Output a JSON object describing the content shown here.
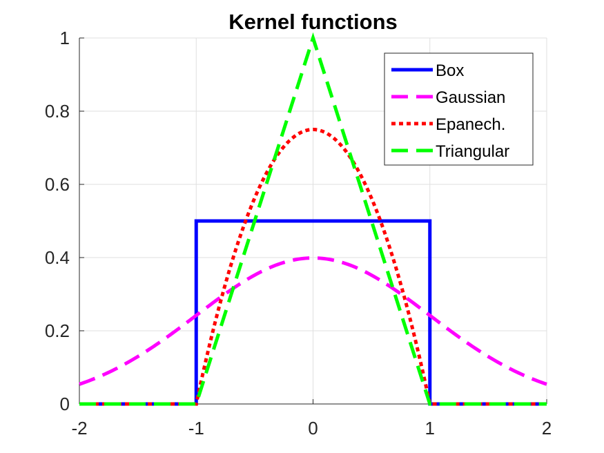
{
  "chart_data": {
    "type": "line",
    "title": "Kernel functions",
    "xlabel": "",
    "ylabel": "",
    "xlim": [
      -2,
      2
    ],
    "ylim": [
      0,
      1
    ],
    "xticks": [
      "-2",
      "-1",
      "0",
      "1",
      "2"
    ],
    "yticks": [
      "0",
      "0.2",
      "0.4",
      "0.6",
      "0.8",
      "1"
    ],
    "grid": true,
    "legend_position": "top-right",
    "x": [
      -2,
      -1.75,
      -1.5,
      -1.25,
      -1,
      -0.75,
      -0.5,
      -0.25,
      0,
      0.25,
      0.5,
      0.75,
      1,
      1.25,
      1.5,
      1.75,
      2
    ],
    "series": [
      {
        "name": "Box",
        "color": "#0000ff",
        "dash": "solid",
        "x": [
          -2,
          -1,
          -1,
          1,
          1,
          2
        ],
        "values": [
          0,
          0,
          0.5,
          0.5,
          0,
          0
        ]
      },
      {
        "name": "Gaussian",
        "color": "#ff00ff",
        "dash": "dashed",
        "x": [
          -2,
          -1.75,
          -1.5,
          -1.25,
          -1,
          -0.75,
          -0.5,
          -0.25,
          0,
          0.25,
          0.5,
          0.75,
          1,
          1.25,
          1.5,
          1.75,
          2
        ],
        "values": [
          0.054,
          0.086,
          0.13,
          0.183,
          0.242,
          0.301,
          0.352,
          0.387,
          0.399,
          0.387,
          0.352,
          0.301,
          0.242,
          0.183,
          0.13,
          0.086,
          0.054
        ]
      },
      {
        "name": "Epanech.",
        "color": "#ff0000",
        "dash": "dotted",
        "x": [
          -2,
          -1,
          -0.875,
          -0.75,
          -0.625,
          -0.5,
          -0.375,
          -0.25,
          -0.125,
          0,
          0.125,
          0.25,
          0.375,
          0.5,
          0.625,
          0.75,
          0.875,
          1,
          2
        ],
        "values": [
          0,
          0,
          0.176,
          0.328,
          0.457,
          0.563,
          0.645,
          0.703,
          0.738,
          0.75,
          0.738,
          0.703,
          0.645,
          0.563,
          0.457,
          0.328,
          0.176,
          0,
          0
        ]
      },
      {
        "name": "Triangular",
        "color": "#00ff00",
        "dash": "dashed",
        "x": [
          -2,
          -1,
          0,
          1,
          2
        ],
        "values": [
          0,
          0,
          1,
          0,
          0
        ]
      }
    ]
  }
}
